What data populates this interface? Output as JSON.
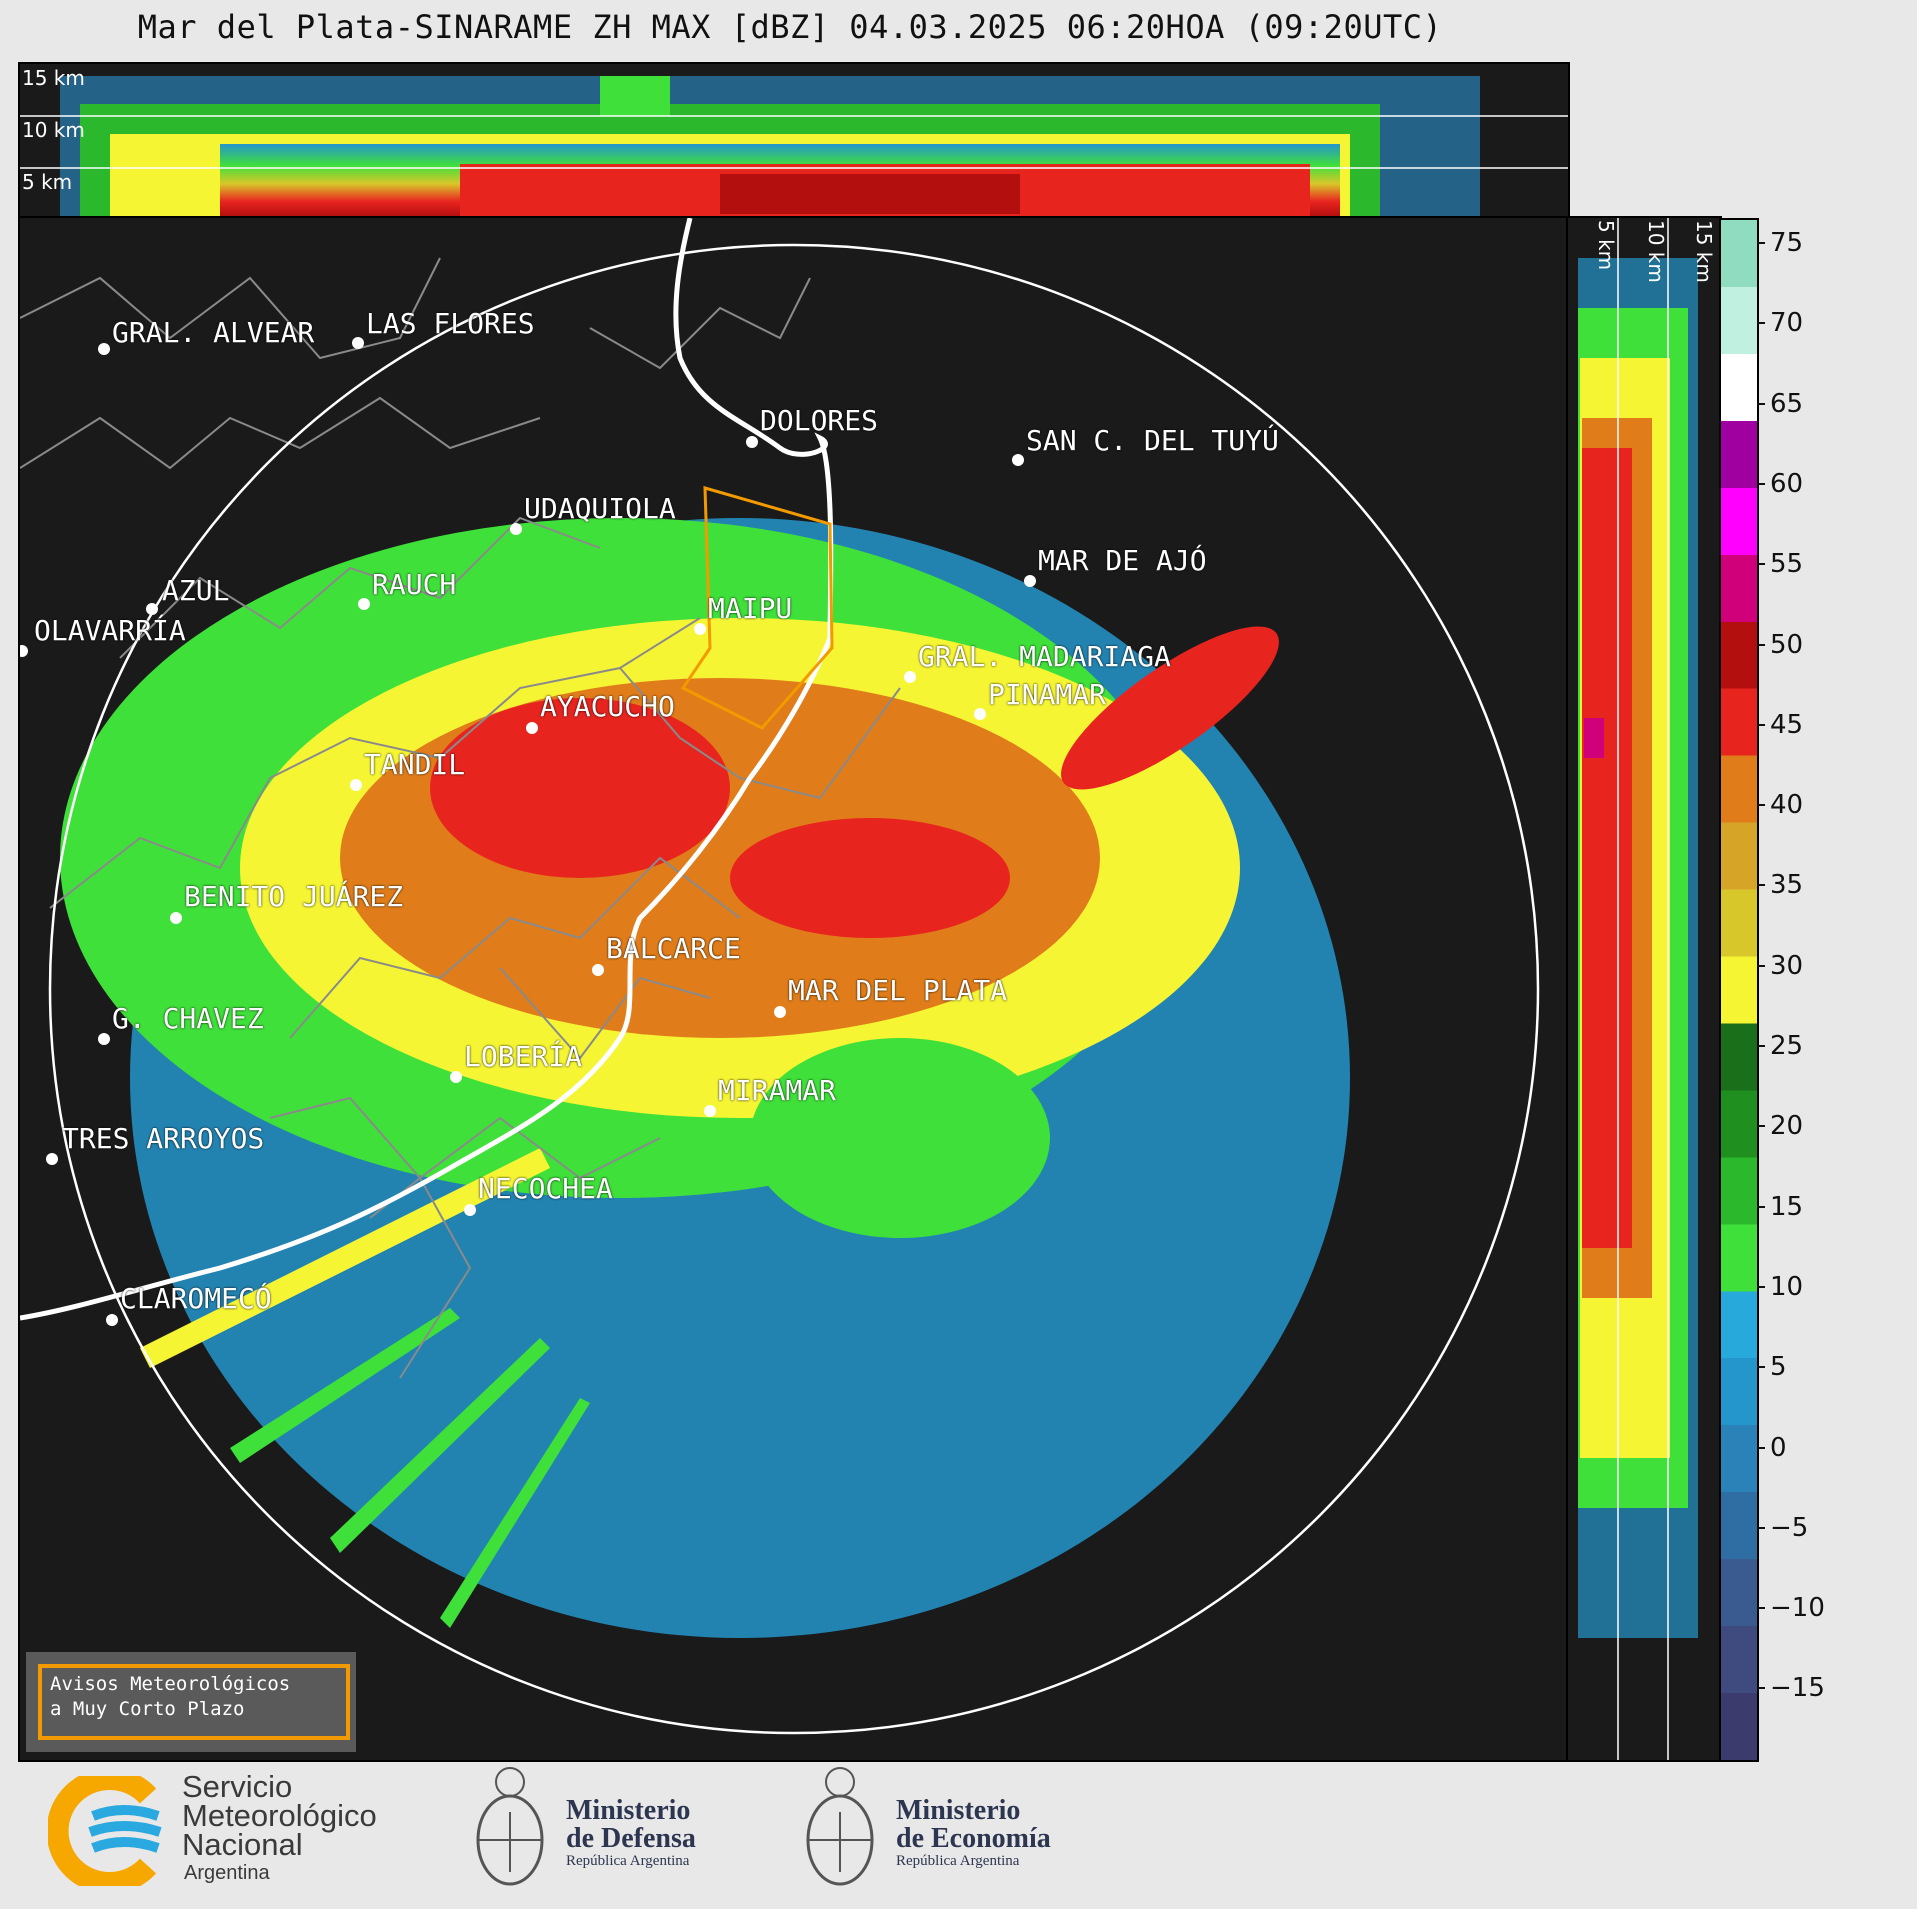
{
  "title": "Mar del Plata-SINARAME ZH MAX [dBZ] 04.03.2025 06:20HOA (09:20UTC)",
  "top_panel": {
    "altitudes": [
      "15 km",
      "10 km",
      "5 km"
    ]
  },
  "side_panel": {
    "altitudes": [
      "5 km",
      "10 km",
      "15 km"
    ]
  },
  "cities": [
    {
      "name": "GRAL. ALVEAR"
    },
    {
      "name": "LAS FLORES"
    },
    {
      "name": "DOLORES"
    },
    {
      "name": "SAN C. DEL TUYÚ"
    },
    {
      "name": "UDAQUIOLA"
    },
    {
      "name": "MAR DE AJÓ"
    },
    {
      "name": "AZUL"
    },
    {
      "name": "RAUCH"
    },
    {
      "name": "MAIPU"
    },
    {
      "name": "OLAVARRÍA"
    },
    {
      "name": "GRAL. MADARIAGA"
    },
    {
      "name": "AYACUCHO"
    },
    {
      "name": "PINAMAR"
    },
    {
      "name": "TANDIL"
    },
    {
      "name": "BENITO JUÁREZ"
    },
    {
      "name": "BALCARCE"
    },
    {
      "name": "MAR DEL PLATA"
    },
    {
      "name": "G. CHAVEZ"
    },
    {
      "name": "LOBERÍA"
    },
    {
      "name": "MIRAMAR"
    },
    {
      "name": "TRES ARROYOS"
    },
    {
      "name": "NECOCHEA"
    },
    {
      "name": "CLAROMECÓ"
    }
  ],
  "colorbar": {
    "unit": "dBZ",
    "ticks": [
      "75",
      "70",
      "65",
      "60",
      "55",
      "50",
      "45",
      "40",
      "35",
      "30",
      "25",
      "20",
      "15",
      "10",
      "5",
      "0",
      "−5",
      "−10",
      "−15"
    ],
    "colors": [
      "#3b3b6e",
      "#3f4a7e",
      "#3a5b8f",
      "#2f6ea3",
      "#2a82b8",
      "#2596cc",
      "#27a9dc",
      "#3fe03a",
      "#2cb82c",
      "#1f8f1f",
      "#1a6f1a",
      "#f5f534",
      "#d8c72a",
      "#d6a528",
      "#e07d1a",
      "#e8241f",
      "#b40f0f",
      "#d0007a",
      "#ff00ff",
      "#a000a0",
      "#ffffff",
      "#bff0e0",
      "#8fdcc0"
    ]
  },
  "aviso": {
    "line1": "Avisos Meteorológicos",
    "line2": "a Muy Corto Plazo"
  },
  "logos": {
    "smn": {
      "name_line1": "Servicio",
      "name_line2": "Meteorológico",
      "name_line3": "Nacional",
      "country": "Argentina"
    },
    "defensa": {
      "line1": "Ministerio",
      "line2": "de Defensa",
      "sub": "República Argentina"
    },
    "economia": {
      "line1": "Ministerio",
      "line2": "de Economía",
      "sub": "República Argentina"
    }
  }
}
